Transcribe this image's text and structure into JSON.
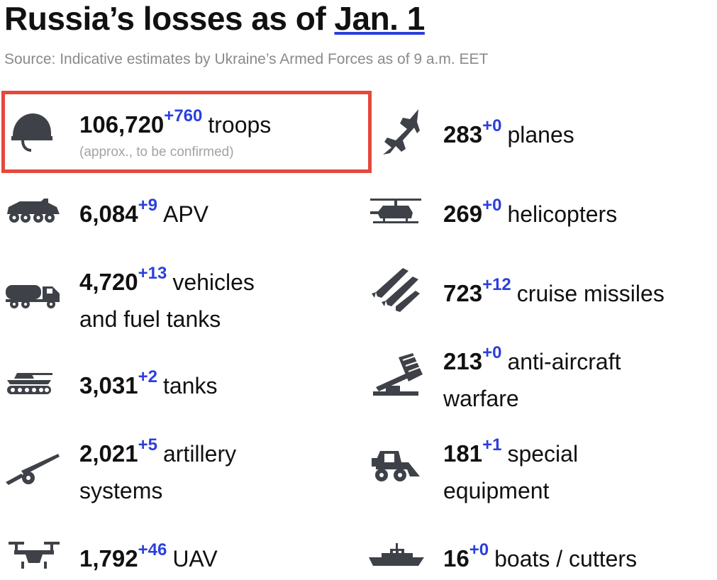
{
  "header": {
    "title_prefix": "Russia’s losses as of",
    "title_date": "Jan. 1",
    "source": "Source: Indicative estimates by Ukraine’s Armed Forces as of 9 a.m. EET"
  },
  "items": [
    {
      "icon": "helmet-icon",
      "value": "106,720",
      "delta": "+760",
      "label": "troops",
      "note": "(approx., to be confirmed)"
    },
    {
      "icon": "plane-icon",
      "value": "283",
      "delta": "+0",
      "label": "planes"
    },
    {
      "icon": "apv-icon",
      "value": "6,084",
      "delta": "+9",
      "label": "APV"
    },
    {
      "icon": "helicopter-icon",
      "value": "269",
      "delta": "+0",
      "label": "helicopters"
    },
    {
      "icon": "fuel-truck-icon",
      "value": "4,720",
      "delta": "+13",
      "label": "vehicles",
      "label2": "and fuel tanks"
    },
    {
      "icon": "missile-icon",
      "value": "723",
      "delta": "+12",
      "label": "cruise missiles"
    },
    {
      "icon": "tank-icon",
      "value": "3,031",
      "delta": "+2",
      "label": "tanks"
    },
    {
      "icon": "anti-aircraft-icon",
      "value": "213",
      "delta": "+0",
      "label": "anti-aircraft",
      "label2": "warfare"
    },
    {
      "icon": "artillery-icon",
      "value": "2,021",
      "delta": "+5",
      "label": "artillery",
      "label2": "systems"
    },
    {
      "icon": "loader-icon",
      "value": "181",
      "delta": "+1",
      "label": "special",
      "label2": "equipment"
    },
    {
      "icon": "drone-icon",
      "value": "1,792",
      "delta": "+46",
      "label": "UAV"
    },
    {
      "icon": "boat-icon",
      "value": "16",
      "delta": "+0",
      "label": "boats / cutters"
    }
  ]
}
